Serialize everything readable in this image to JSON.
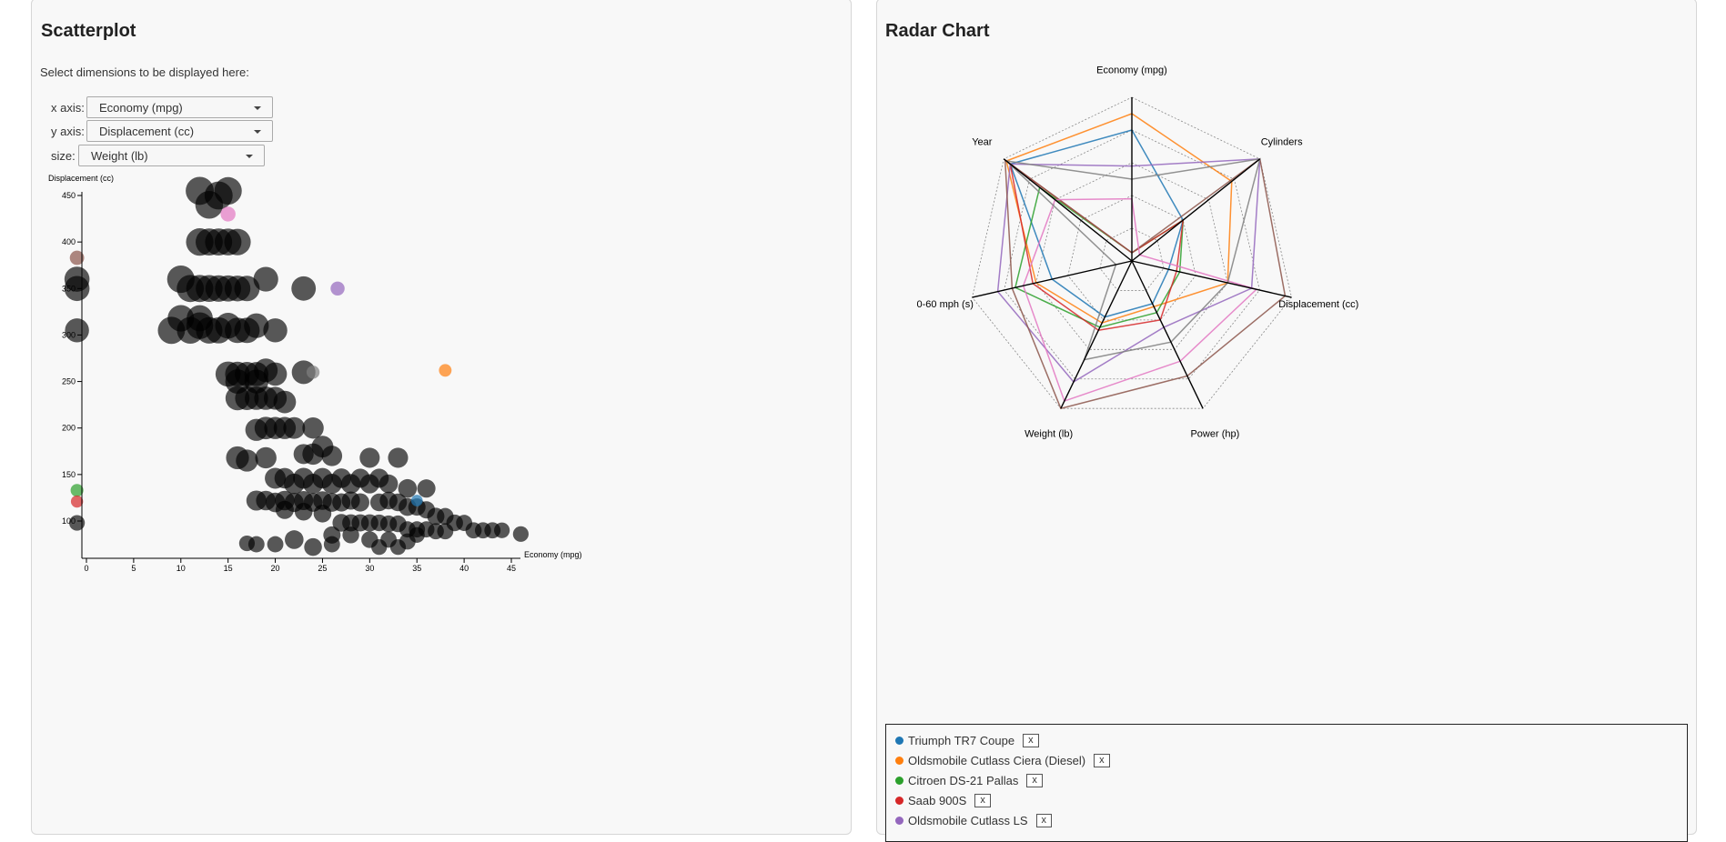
{
  "scatter": {
    "title": "Scatterplot",
    "subtitle": "Select dimensions to be displayed here:",
    "x_axis_label": "x axis:",
    "x_axis_value": "Economy (mpg)",
    "y_axis_label": "y axis:",
    "y_axis_value": "Displacement (cc)",
    "size_label": "size:",
    "size_value": "Weight (lb)"
  },
  "radar": {
    "title": "Radar Chart"
  },
  "legend": [
    {
      "name": "Triumph TR7 Coupe",
      "color": "#1f77b4",
      "remove": "x"
    },
    {
      "name": "Oldsmobile Cutlass Ciera (Diesel)",
      "color": "#ff7f0e",
      "remove": "x"
    },
    {
      "name": "Citroen DS-21 Pallas",
      "color": "#2ca02c",
      "remove": "x"
    },
    {
      "name": "Saab 900S",
      "color": "#d62728",
      "remove": "x"
    },
    {
      "name": "Oldsmobile Cutlass LS",
      "color": "#9467bd",
      "remove": "x"
    }
  ],
  "chart_data": [
    {
      "type": "scatter",
      "xlabel": "Economy (mpg)",
      "ylabel": "Displacement (cc)",
      "size_dimension": "Weight (lb)",
      "xlim": [
        -1,
        46
      ],
      "ylim": [
        68,
        455
      ],
      "x_ticks": [
        0,
        5,
        10,
        15,
        20,
        25,
        30,
        35,
        40,
        45
      ],
      "y_ticks": [
        100,
        150,
        200,
        250,
        300,
        350,
        400,
        450
      ],
      "background_points_color": "#000000",
      "background_points": [
        {
          "x": 12,
          "y": 455,
          "w": 4500
        },
        {
          "x": 14,
          "y": 450,
          "w": 4500
        },
        {
          "x": 13,
          "y": 440,
          "w": 4400
        },
        {
          "x": 15,
          "y": 455,
          "w": 4300
        },
        {
          "x": 12,
          "y": 400,
          "w": 4300
        },
        {
          "x": 14,
          "y": 400,
          "w": 4200
        },
        {
          "x": 15,
          "y": 400,
          "w": 4100
        },
        {
          "x": 16,
          "y": 400,
          "w": 4000
        },
        {
          "x": 13,
          "y": 400,
          "w": 4200
        },
        {
          "x": 10,
          "y": 360,
          "w": 4300
        },
        {
          "x": 12,
          "y": 350,
          "w": 4200
        },
        {
          "x": 13,
          "y": 350,
          "w": 4100
        },
        {
          "x": 14,
          "y": 350,
          "w": 4000
        },
        {
          "x": 15,
          "y": 350,
          "w": 3900
        },
        {
          "x": 16,
          "y": 350,
          "w": 3800
        },
        {
          "x": 17,
          "y": 350,
          "w": 3700
        },
        {
          "x": 19,
          "y": 360,
          "w": 3500
        },
        {
          "x": 11,
          "y": 350,
          "w": 4200
        },
        {
          "x": 9,
          "y": 305,
          "w": 4200
        },
        {
          "x": 11,
          "y": 305,
          "w": 4100
        },
        {
          "x": 12,
          "y": 310,
          "w": 4100
        },
        {
          "x": 13,
          "y": 305,
          "w": 4000
        },
        {
          "x": 14,
          "y": 305,
          "w": 3900
        },
        {
          "x": 15,
          "y": 310,
          "w": 3800
        },
        {
          "x": 16,
          "y": 305,
          "w": 3700
        },
        {
          "x": 17,
          "y": 305,
          "w": 3700
        },
        {
          "x": 18,
          "y": 310,
          "w": 3500
        },
        {
          "x": 20,
          "y": 305,
          "w": 3300
        },
        {
          "x": 10,
          "y": 318,
          "w": 4000
        },
        {
          "x": 12,
          "y": 318,
          "w": 3900
        },
        {
          "x": 15,
          "y": 258,
          "w": 3600
        },
        {
          "x": 16,
          "y": 258,
          "w": 3500
        },
        {
          "x": 17,
          "y": 258,
          "w": 3400
        },
        {
          "x": 18,
          "y": 258,
          "w": 3300
        },
        {
          "x": 19,
          "y": 262,
          "w": 3200
        },
        {
          "x": 20,
          "y": 258,
          "w": 3100
        },
        {
          "x": 16,
          "y": 250,
          "w": 3400
        },
        {
          "x": 18,
          "y": 250,
          "w": 3300
        },
        {
          "x": 16,
          "y": 232,
          "w": 3300
        },
        {
          "x": 17,
          "y": 232,
          "w": 3200
        },
        {
          "x": 18,
          "y": 232,
          "w": 3100
        },
        {
          "x": 19,
          "y": 232,
          "w": 3100
        },
        {
          "x": 20,
          "y": 232,
          "w": 3000
        },
        {
          "x": 21,
          "y": 228,
          "w": 2900
        },
        {
          "x": 19,
          "y": 200,
          "w": 2900
        },
        {
          "x": 20,
          "y": 200,
          "w": 2800
        },
        {
          "x": 21,
          "y": 200,
          "w": 2800
        },
        {
          "x": 22,
          "y": 200,
          "w": 2700
        },
        {
          "x": 24,
          "y": 200,
          "w": 2600
        },
        {
          "x": 18,
          "y": 198,
          "w": 2800
        },
        {
          "x": 16,
          "y": 168,
          "w": 3000
        },
        {
          "x": 17,
          "y": 165,
          "w": 2800
        },
        {
          "x": 19,
          "y": 168,
          "w": 2600
        },
        {
          "x": 24,
          "y": 172,
          "w": 2600
        },
        {
          "x": 26,
          "y": 170,
          "w": 2400
        },
        {
          "x": 30,
          "y": 168,
          "w": 2300
        },
        {
          "x": 33,
          "y": 168,
          "w": 2300
        },
        {
          "x": 25,
          "y": 180,
          "w": 2700
        },
        {
          "x": 23,
          "y": 172,
          "w": 2300
        },
        {
          "x": 20,
          "y": 146,
          "w": 2500
        },
        {
          "x": 21,
          "y": 146,
          "w": 2400
        },
        {
          "x": 22,
          "y": 140,
          "w": 2400
        },
        {
          "x": 23,
          "y": 146,
          "w": 2500
        },
        {
          "x": 24,
          "y": 140,
          "w": 2300
        },
        {
          "x": 25,
          "y": 146,
          "w": 2400
        },
        {
          "x": 26,
          "y": 140,
          "w": 2300
        },
        {
          "x": 27,
          "y": 146,
          "w": 2200
        },
        {
          "x": 28,
          "y": 140,
          "w": 2200
        },
        {
          "x": 29,
          "y": 146,
          "w": 2100
        },
        {
          "x": 30,
          "y": 140,
          "w": 2100
        },
        {
          "x": 31,
          "y": 146,
          "w": 2100
        },
        {
          "x": 32,
          "y": 140,
          "w": 2000
        },
        {
          "x": 34,
          "y": 135,
          "w": 2000
        },
        {
          "x": 36,
          "y": 135,
          "w": 1900
        },
        {
          "x": 18,
          "y": 122,
          "w": 2300
        },
        {
          "x": 19,
          "y": 122,
          "w": 2200
        },
        {
          "x": 20,
          "y": 120,
          "w": 2200
        },
        {
          "x": 21,
          "y": 122,
          "w": 2200
        },
        {
          "x": 22,
          "y": 120,
          "w": 2100
        },
        {
          "x": 23,
          "y": 122,
          "w": 2100
        },
        {
          "x": 24,
          "y": 120,
          "w": 2000
        },
        {
          "x": 25,
          "y": 122,
          "w": 2000
        },
        {
          "x": 26,
          "y": 120,
          "w": 2000
        },
        {
          "x": 27,
          "y": 120,
          "w": 1900
        },
        {
          "x": 28,
          "y": 122,
          "w": 1900
        },
        {
          "x": 29,
          "y": 120,
          "w": 1900
        },
        {
          "x": 31,
          "y": 120,
          "w": 1800
        },
        {
          "x": 32,
          "y": 122,
          "w": 1800
        },
        {
          "x": 33,
          "y": 120,
          "w": 1800
        },
        {
          "x": 34,
          "y": 115,
          "w": 1800
        },
        {
          "x": 35,
          "y": 115,
          "w": 1700
        },
        {
          "x": 36,
          "y": 112,
          "w": 1700
        },
        {
          "x": 37,
          "y": 105,
          "w": 1700
        },
        {
          "x": 38,
          "y": 105,
          "w": 1600
        },
        {
          "x": 39,
          "y": 98,
          "w": 1600
        },
        {
          "x": 21,
          "y": 112,
          "w": 1900
        },
        {
          "x": 23,
          "y": 110,
          "w": 1800
        },
        {
          "x": 25,
          "y": 108,
          "w": 1800
        },
        {
          "x": 27,
          "y": 98,
          "w": 1800
        },
        {
          "x": 28,
          "y": 98,
          "w": 1700
        },
        {
          "x": 29,
          "y": 98,
          "w": 1700
        },
        {
          "x": 30,
          "y": 98,
          "w": 1700
        },
        {
          "x": 31,
          "y": 98,
          "w": 1600
        },
        {
          "x": 32,
          "y": 97,
          "w": 1600
        },
        {
          "x": 33,
          "y": 97,
          "w": 1600
        },
        {
          "x": 34,
          "y": 91,
          "w": 1500
        },
        {
          "x": 35,
          "y": 91,
          "w": 1500
        },
        {
          "x": 36,
          "y": 91,
          "w": 1500
        },
        {
          "x": 37,
          "y": 89,
          "w": 1500
        },
        {
          "x": 38,
          "y": 89,
          "w": 1500
        },
        {
          "x": 40,
          "y": 98,
          "w": 1500
        },
        {
          "x": 41,
          "y": 90,
          "w": 1500
        },
        {
          "x": 42,
          "y": 90,
          "w": 1500
        },
        {
          "x": 43,
          "y": 90,
          "w": 1500
        },
        {
          "x": 44,
          "y": 90,
          "w": 1400
        },
        {
          "x": 46,
          "y": 86,
          "w": 1400
        },
        {
          "x": 26,
          "y": 85,
          "w": 1700
        },
        {
          "x": 28,
          "y": 85,
          "w": 1600
        },
        {
          "x": 30,
          "y": 80,
          "w": 1600
        },
        {
          "x": 32,
          "y": 80,
          "w": 1500
        },
        {
          "x": 34,
          "y": 78,
          "w": 1500
        },
        {
          "x": 35,
          "y": 85,
          "w": 1400
        },
        {
          "x": 18,
          "y": 75,
          "w": 1500
        },
        {
          "x": 20,
          "y": 75,
          "w": 1500
        },
        {
          "x": 22,
          "y": 80,
          "w": 2000
        },
        {
          "x": 24,
          "y": 72,
          "w": 1800
        },
        {
          "x": 26,
          "y": 75,
          "w": 1500
        },
        {
          "x": 31,
          "y": 72,
          "w": 1400
        },
        {
          "x": 33,
          "y": 72,
          "w": 1400
        },
        {
          "x": 17,
          "y": 76,
          "w": 1400
        },
        {
          "x": 23,
          "y": 260,
          "w": 3200
        },
        {
          "x": 23,
          "y": 350,
          "w": 3400
        },
        {
          "x": -1,
          "y": 350,
          "w": 3600
        },
        {
          "x": -1,
          "y": 360,
          "w": 3600
        },
        {
          "x": -1,
          "y": 305,
          "w": 3300
        },
        {
          "x": -1,
          "y": 98,
          "w": 1400
        }
      ],
      "highlighted_points": [
        {
          "name": "Oldsmobile Cutlass LS",
          "x": 26.6,
          "y": 350,
          "w": 3725,
          "color": "#9467bd"
        },
        {
          "name": "Oldsmobile Cutlass Ciera (Diesel)",
          "x": 38,
          "y": 262,
          "w": 3015,
          "color": "#ff7f0e"
        },
        {
          "name": "Triumph TR7 Coupe",
          "x": 35,
          "y": 122,
          "w": 2500,
          "color": "#1f77b4"
        },
        {
          "name": "Citroen DS-21 Pallas",
          "x": -1,
          "y": 133,
          "w": 3090,
          "color": "#2ca02c"
        },
        {
          "name": "Saab 900S",
          "x": -1,
          "y": 121,
          "w": 2800,
          "color": "#d62728"
        },
        {
          "x": -1,
          "y": 383,
          "w": 3900,
          "color": "#8c564b"
        },
        {
          "x": 15,
          "y": 430,
          "w": 4200,
          "color": "#e377c2"
        },
        {
          "x": 24,
          "y": 260,
          "w": 3200,
          "color": "#7f7f7f"
        }
      ]
    },
    {
      "type": "radar",
      "axes": [
        "Economy (mpg)",
        "Cylinders",
        "Displacement (cc)",
        "Power (hp)",
        "Weight (lb)",
        "0-60 mph (s)",
        "Year"
      ],
      "grid": "dotted",
      "series": [
        {
          "name": "Triumph TR7 Coupe",
          "color": "#1f77b4",
          "values": [
            0.8,
            0.4,
            0.23,
            0.29,
            0.38,
            0.5,
            0.95
          ]
        },
        {
          "name": "Oldsmobile Cutlass Ciera (Diesel)",
          "color": "#ff7f0e",
          "values": [
            0.9,
            0.78,
            0.6,
            0.31,
            0.42,
            0.6,
            0.98
          ]
        },
        {
          "name": "Citroen DS-21 Pallas",
          "color": "#2ca02c",
          "values": [
            0.05,
            0.4,
            0.3,
            0.35,
            0.45,
            0.73,
            0.72
          ]
        },
        {
          "name": "Saab 900S",
          "color": "#d62728",
          "values": [
            0.05,
            0.4,
            0.28,
            0.4,
            0.47,
            0.62,
            0.95
          ]
        },
        {
          "name": "Oldsmobile Cutlass LS",
          "color": "#9467bd",
          "values": [
            0.58,
            1.0,
            0.75,
            0.45,
            0.82,
            0.84,
            0.95
          ]
        },
        {
          "color": "#8c564b",
          "values": [
            0.05,
            1.0,
            0.96,
            0.78,
            1.0,
            0.75,
            0.99
          ]
        },
        {
          "color": "#e377c2",
          "values": [
            0.38,
            0.06,
            0.78,
            0.68,
            0.95,
            0.68,
            0.6
          ]
        },
        {
          "color": "#7f7f7f",
          "values": [
            0.5,
            1.0,
            0.6,
            0.55,
            0.67,
            0.1,
            0.98
          ]
        }
      ]
    }
  ]
}
